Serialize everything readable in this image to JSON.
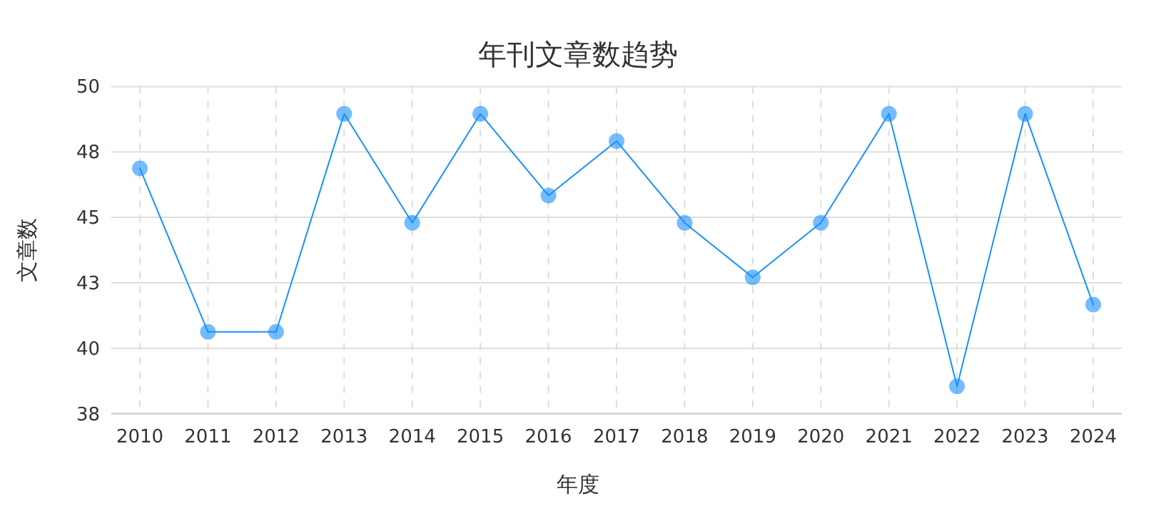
{
  "chart_data": {
    "type": "line",
    "title": "年刊文章数趋势",
    "xlabel": "年度",
    "ylabel": "文章数",
    "categories": [
      "2010",
      "2011",
      "2012",
      "2013",
      "2014",
      "2015",
      "2016",
      "2017",
      "2018",
      "2019",
      "2020",
      "2021",
      "2022",
      "2023",
      "2024"
    ],
    "series": [
      {
        "color": "#1890ff",
        "values": [
          47,
          41,
          41,
          49,
          45,
          49,
          46,
          48,
          45,
          43,
          45,
          49,
          39,
          49,
          42
        ]
      }
    ],
    "ylim": [
      38,
      50
    ],
    "yticks": [
      {
        "value": 38,
        "label": "38"
      },
      {
        "value": 40.4,
        "label": "40"
      },
      {
        "value": 42.8,
        "label": "43"
      },
      {
        "value": 45.2,
        "label": "45"
      },
      {
        "value": 47.6,
        "label": "48"
      },
      {
        "value": 50,
        "label": "50"
      }
    ],
    "grid": true,
    "marker": "circle",
    "line_style": "solid"
  }
}
